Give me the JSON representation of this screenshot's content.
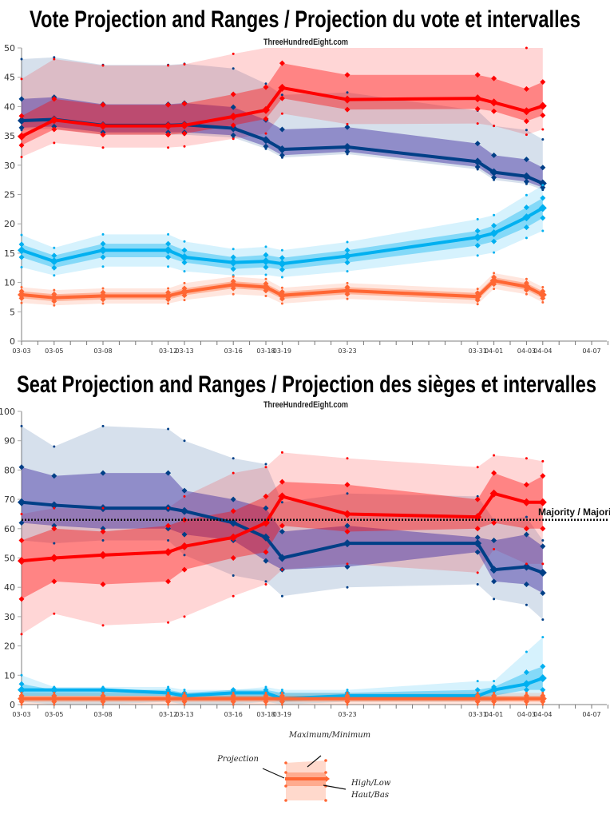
{
  "site": "ThreeHundredEight.com",
  "legend": {
    "maxmin": "Maximum/Minimum",
    "projection": "Projection",
    "highlow": "High/Low",
    "hautbas": "Haut/Bas",
    "color": "#ff6633"
  },
  "chart_data": [
    {
      "type": "area",
      "title": "Vote Projection and Ranges / Projection du vote et intervalles",
      "x_ticks": [
        "03-03",
        "03-05",
        "03-08",
        "03-12",
        "03-13",
        "03-16",
        "03-18",
        "03-19",
        "03-23",
        "03-31",
        "04-01",
        "04-03",
        "04-04",
        "04-07"
      ],
      "x": [
        "03-03",
        "03-05",
        "03-08",
        "03-12",
        "03-13",
        "03-16",
        "03-18",
        "03-19",
        "03-23",
        "03-31",
        "04-01",
        "04-03",
        "04-04"
      ],
      "ylim": [
        0,
        50
      ],
      "y_ticks": [
        0,
        5,
        10,
        15,
        20,
        25,
        30,
        35,
        40,
        45,
        50
      ],
      "grid": false,
      "series": [
        {
          "color": "#003f87",
          "projection": [
            37.6,
            37.8,
            36.8,
            36.8,
            36.9,
            36.3,
            34.3,
            32.7,
            33.1,
            30.6,
            28.8,
            28.1,
            26.9
          ],
          "high": [
            41.3,
            41.6,
            40.4,
            40.4,
            40.6,
            39.9,
            37.7,
            36.1,
            36.5,
            33.7,
            31.7,
            31.0,
            29.6
          ],
          "low": [
            36.4,
            36.6,
            35.6,
            35.6,
            35.6,
            35.1,
            33.2,
            31.7,
            32.3,
            29.7,
            27.9,
            27.2,
            26.2
          ],
          "max": [
            48.1,
            48.4,
            47.1,
            47.1,
            47.3,
            46.5,
            43.9,
            42.0,
            42.4,
            39.3,
            36.7,
            36.0,
            34.4
          ],
          "min": [
            36.0,
            36.2,
            35.2,
            35.2,
            35.2,
            34.7,
            32.8,
            31.3,
            31.9,
            29.3,
            27.5,
            26.8,
            25.8
          ]
        },
        {
          "color": "#ff0000",
          "projection": [
            34.9,
            37.7,
            36.7,
            36.7,
            36.8,
            38.3,
            39.4,
            43.2,
            41.2,
            41.4,
            40.7,
            39.2,
            40.1
          ],
          "high": [
            38.4,
            41.3,
            40.3,
            40.3,
            40.5,
            42.1,
            43.3,
            47.4,
            45.4,
            45.4,
            44.8,
            43.0,
            44.2
          ],
          "low": [
            33.4,
            36.1,
            35.2,
            35.2,
            35.4,
            36.8,
            37.9,
            41.4,
            39.5,
            39.6,
            39.2,
            37.5,
            38.5
          ],
          "max": [
            44.7,
            48.1,
            47.0,
            47.0,
            47.2,
            49.0,
            52.0,
            53.0,
            52.0,
            52.0,
            51.0,
            50.0,
            51.0
          ],
          "min": [
            31.4,
            33.8,
            33.0,
            33.0,
            33.2,
            34.5,
            35.4,
            38.8,
            37.0,
            37.1,
            36.7,
            35.2,
            36.1
          ]
        },
        {
          "color": "#00b0f0",
          "projection": [
            15.5,
            13.6,
            15.5,
            15.5,
            14.3,
            13.4,
            13.6,
            13.2,
            14.5,
            17.7,
            18.4,
            21.1,
            22.7
          ],
          "high": [
            16.5,
            14.6,
            16.6,
            16.6,
            15.5,
            14.3,
            14.7,
            14.2,
            15.5,
            18.8,
            19.7,
            22.8,
            24.4
          ],
          "low": [
            14.3,
            12.5,
            14.3,
            14.3,
            13.4,
            12.3,
            12.6,
            12.2,
            13.4,
            16.3,
            17.0,
            19.4,
            21.0
          ],
          "max": [
            18.1,
            15.9,
            18.2,
            18.2,
            17.0,
            15.7,
            16.1,
            15.5,
            16.9,
            20.8,
            21.5,
            24.9,
            26.6
          ],
          "min": [
            12.6,
            11.2,
            12.7,
            12.7,
            11.9,
            11.2,
            11.3,
            10.9,
            11.9,
            14.6,
            15.1,
            17.6,
            18.8
          ]
        },
        {
          "color": "#ff6633",
          "projection": [
            7.9,
            7.4,
            7.7,
            7.7,
            8.4,
            9.6,
            9.2,
            7.8,
            8.6,
            7.6,
            10.3,
            9.3,
            7.9
          ],
          "high": [
            8.5,
            8.0,
            8.3,
            8.3,
            9.0,
            10.2,
            9.8,
            8.4,
            9.2,
            8.2,
            10.9,
            9.9,
            8.5
          ],
          "low": [
            7.3,
            6.8,
            7.1,
            7.1,
            7.8,
            9.0,
            8.6,
            7.2,
            8.0,
            7.0,
            9.7,
            8.7,
            7.3
          ],
          "max": [
            9.2,
            8.7,
            9.0,
            9.0,
            9.9,
            11.0,
            10.6,
            9.1,
            9.9,
            8.9,
            11.6,
            10.6,
            9.2
          ],
          "min": [
            6.5,
            6.1,
            6.4,
            6.4,
            7.0,
            8.0,
            7.7,
            6.4,
            7.2,
            6.3,
            8.9,
            8.0,
            6.6
          ]
        }
      ]
    },
    {
      "type": "area",
      "title": "Seat Projection and Ranges / Projection des sièges et intervalles",
      "x_ticks": [
        "03-03",
        "03-05",
        "03-08",
        "03-12",
        "03-13",
        "03-16",
        "03-18",
        "03-19",
        "03-23",
        "03-31",
        "04-01",
        "04-03",
        "04-04",
        "04-07"
      ],
      "x": [
        "03-03",
        "03-05",
        "03-08",
        "03-12",
        "03-13",
        "03-16",
        "03-18",
        "03-19",
        "03-23",
        "03-31",
        "04-01",
        "04-03",
        "04-04"
      ],
      "ylim": [
        0,
        100
      ],
      "y_ticks": [
        0,
        10,
        20,
        30,
        40,
        50,
        60,
        70,
        80,
        90,
        100
      ],
      "grid": false,
      "majority": {
        "value": 63,
        "label": "Majority / Majorité"
      },
      "series": [
        {
          "color": "#003f87",
          "projection": [
            69,
            68,
            67,
            67,
            66,
            62,
            57,
            50,
            55,
            55,
            46,
            47,
            45
          ],
          "high": [
            81,
            78,
            79,
            79,
            73,
            70,
            67,
            59,
            61,
            57,
            56,
            58,
            54
          ],
          "low": [
            62,
            61,
            60,
            60,
            58,
            56,
            49,
            46,
            47,
            52,
            42,
            41,
            38
          ],
          "max": [
            95,
            88,
            95,
            94,
            90,
            84,
            82,
            69,
            72,
            71,
            63,
            64,
            56
          ],
          "min": [
            56,
            55,
            56,
            56,
            51,
            44,
            42,
            37,
            40,
            41,
            36,
            34,
            29
          ]
        },
        {
          "color": "#ff0000",
          "projection": [
            49,
            50,
            51,
            52,
            54,
            57,
            62,
            71,
            65,
            64,
            72,
            69,
            69
          ],
          "high": [
            56,
            60,
            59,
            61,
            63,
            66,
            71,
            76,
            75,
            70,
            79,
            75,
            78
          ],
          "low": [
            36,
            42,
            41,
            42,
            46,
            50,
            52,
            61,
            59,
            60,
            62,
            60,
            60
          ],
          "max": [
            65,
            67,
            67,
            67,
            71,
            79,
            81,
            86,
            84,
            81,
            85,
            84,
            83
          ],
          "min": [
            24,
            31,
            27,
            28,
            30,
            37,
            41,
            46,
            48,
            45,
            53,
            48,
            48
          ]
        },
        {
          "color": "#00b0f0",
          "projection": [
            5,
            5,
            5,
            4,
            3,
            4,
            4,
            2,
            3,
            3,
            5,
            7,
            9
          ],
          "high": [
            7,
            5,
            5,
            5,
            4,
            5,
            5,
            4,
            4,
            5,
            6,
            11,
            13
          ],
          "low": [
            3,
            3,
            3,
            3,
            2,
            2,
            2,
            1,
            2,
            2,
            3,
            5,
            5
          ],
          "max": [
            10,
            6,
            6,
            6,
            5,
            5,
            6,
            5,
            5,
            8,
            8,
            18,
            23
          ],
          "min": [
            1,
            0,
            0,
            1,
            0,
            0,
            1,
            0,
            1,
            1,
            1,
            2,
            2
          ]
        },
        {
          "color": "#ff6633",
          "projection": [
            2,
            2,
            2,
            2,
            2,
            2,
            2,
            2,
            2,
            2,
            2,
            2,
            2
          ],
          "high": [
            3,
            3,
            3,
            3,
            3,
            3,
            3,
            3,
            3,
            3,
            3,
            3,
            3
          ],
          "low": [
            1,
            1,
            1,
            1,
            1,
            1,
            1,
            1,
            1,
            1,
            1,
            1,
            1
          ],
          "max": [
            4,
            4,
            4,
            4,
            4,
            4,
            4,
            4,
            4,
            4,
            4,
            4,
            4
          ],
          "min": [
            0,
            0,
            0,
            0,
            0,
            0,
            0,
            0,
            0,
            0,
            0,
            0,
            0
          ]
        }
      ]
    }
  ]
}
